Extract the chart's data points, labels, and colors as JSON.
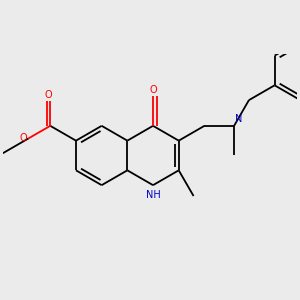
{
  "background_color": "#ebebeb",
  "line_color": "#000000",
  "bond_lw": 1.3,
  "figsize": [
    3.0,
    3.0
  ],
  "dpi": 100,
  "atom_colors": {
    "O": "#ff0000",
    "N": "#0000cc",
    "C": "#000000"
  }
}
